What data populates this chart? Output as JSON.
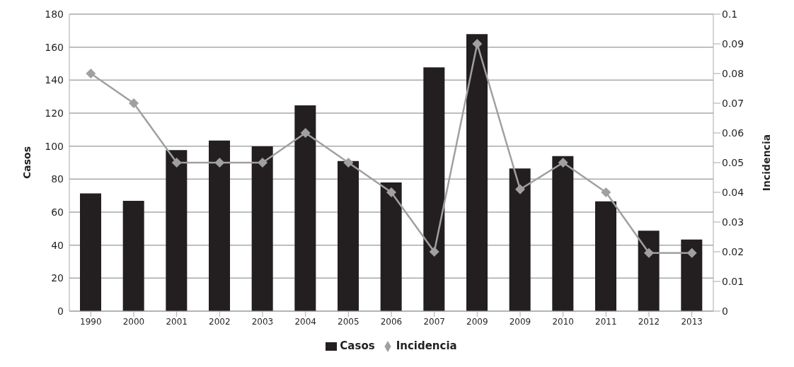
{
  "chart_data": {
    "type": "bar",
    "categories": [
      "1990",
      "2000",
      "2001",
      "2002",
      "2003",
      "2004",
      "2005",
      "2006",
      "2007",
      "2009",
      "2009",
      "2010",
      "2011",
      "2012",
      "2013"
    ],
    "series": [
      {
        "name": "Casos",
        "color": "#231f20",
        "values": [
          71.4,
          66.9,
          97.6,
          103.4,
          99.9,
          124.7,
          91,
          78,
          147.7,
          167.9,
          86.5,
          94,
          66.5,
          48.7,
          43.4
        ]
      },
      {
        "name": "Incidencia",
        "type": "line",
        "axis": "y2",
        "color": "#a0a0a2",
        "marker": "diamond",
        "values": [
          0.08,
          0.07,
          0.05,
          0.05,
          0.05,
          0.06,
          0.05,
          0.04,
          0.02,
          0.09,
          0.041,
          0.05,
          0.04,
          0.0196,
          0.0196
        ]
      }
    ],
    "ylabel": "Casos",
    "y2label": "Incidencia",
    "ylim": [
      0,
      180
    ],
    "yticks": [
      0,
      20,
      40,
      60,
      80,
      100,
      120,
      140,
      160,
      180
    ],
    "y2lim": [
      0,
      0.1
    ],
    "y2ticks": [
      0,
      0.01,
      0.02,
      0.03,
      0.04,
      0.05,
      0.06,
      0.07,
      0.08,
      0.09,
      0.1
    ],
    "grid": "y",
    "legend": "bottom"
  }
}
